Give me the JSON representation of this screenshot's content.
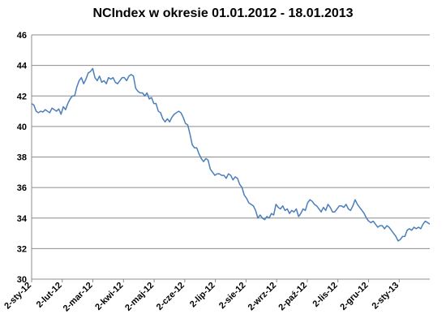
{
  "chart_data": {
    "type": "line",
    "title": "NCIndex w okresie 01.01.2012 - 18.01.2013",
    "xlabel": "",
    "ylabel": "",
    "ylim": [
      30,
      46
    ],
    "yticks": [
      "30",
      "32",
      "34",
      "36",
      "38",
      "40",
      "42",
      "44",
      "46"
    ],
    "xticks": [
      "2-sty-12",
      "2-lut-12",
      "2-mar-12",
      "2-kwi-12",
      "2-maj-12",
      "2-cze-12",
      "2-lip-12",
      "2-sie-12",
      "2-wrz-12",
      "2-paź-12",
      "2-lis-12",
      "2-gru-12",
      "2-sty-13"
    ],
    "grid": "horizontal",
    "line_color": "#4a7ebb",
    "series": [
      {
        "values": [
          41.5,
          41.4,
          41.0,
          40.9,
          41.0,
          40.95,
          41.1,
          41.0,
          40.9,
          41.2,
          41.1,
          41.0,
          41.15,
          40.8,
          41.3,
          41.1,
          41.5,
          41.8,
          42.0,
          42.0,
          42.6,
          43.0,
          43.2,
          42.8,
          43.1,
          43.5,
          43.6,
          43.8,
          43.2,
          43.0,
          43.3,
          42.9,
          43.0,
          42.8,
          43.2,
          43.1,
          43.2,
          42.9,
          42.8,
          43.0,
          43.2,
          43.2,
          43.0,
          43.3,
          43.4,
          43.3,
          42.5,
          42.3,
          42.2,
          42.2,
          42.0,
          42.2,
          41.8,
          41.9,
          41.5,
          41.5,
          41.0,
          40.9,
          40.5,
          40.3,
          40.5,
          40.3,
          40.6,
          40.8,
          40.9,
          41.0,
          40.9,
          40.6,
          40.2,
          40.1,
          39.5,
          38.8,
          38.6,
          38.6,
          38.2,
          37.9,
          37.7,
          37.9,
          37.8,
          37.2,
          37.0,
          36.8,
          36.9,
          36.9,
          36.8,
          36.8,
          36.6,
          36.9,
          36.8,
          36.5,
          36.7,
          36.6,
          36.2,
          36.0,
          35.5,
          35.3,
          35.0,
          34.9,
          34.8,
          34.5,
          34.0,
          34.2,
          34.0,
          33.9,
          34.1,
          34.0,
          34.3,
          34.2,
          34.9,
          34.7,
          34.6,
          34.8,
          34.5,
          34.6,
          34.3,
          34.5,
          34.4,
          34.6,
          34.1,
          34.3,
          34.6,
          34.5,
          35.0,
          35.2,
          35.1,
          34.9,
          34.8,
          34.6,
          34.4,
          34.7,
          34.5,
          34.9,
          34.7,
          34.4,
          34.4,
          34.6,
          34.8,
          34.8,
          34.7,
          34.9,
          34.6,
          34.5,
          34.8,
          35.2,
          34.9,
          34.7,
          34.5,
          34.3,
          34.0,
          33.8,
          33.7,
          33.8,
          33.6,
          33.4,
          33.5,
          33.5,
          33.3,
          33.5,
          33.4,
          33.2,
          33.0,
          32.8,
          32.5,
          32.6,
          32.8,
          32.8,
          33.2,
          33.3,
          33.2,
          33.4,
          33.3,
          33.4,
          33.3,
          33.6,
          33.8,
          33.7,
          33.6
        ]
      }
    ]
  }
}
